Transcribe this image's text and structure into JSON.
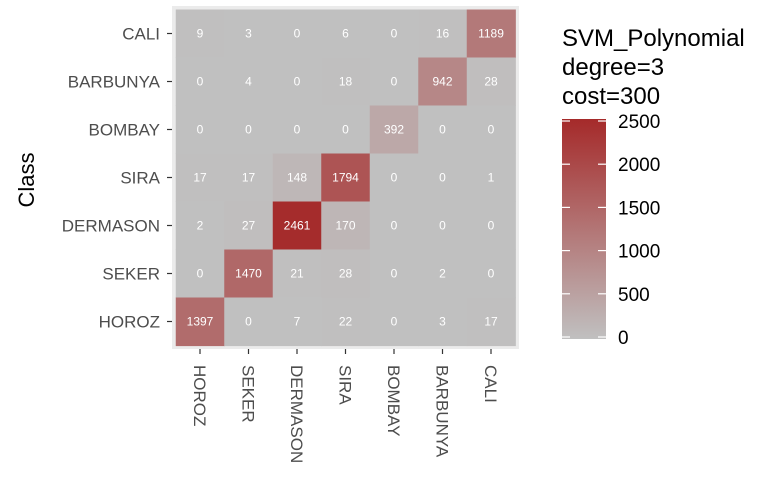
{
  "chart_data": {
    "type": "heatmap",
    "xlabel": "",
    "ylabel": "Class",
    "x_categories": [
      "HOROZ",
      "SEKER",
      "DERMASON",
      "SIRA",
      "BOMBAY",
      "BARBUNYA",
      "CALI"
    ],
    "y_categories": [
      "CALI",
      "BARBUNYA",
      "BOMBAY",
      "SIRA",
      "DERMASON",
      "SEKER",
      "HOROZ"
    ],
    "values": [
      [
        9,
        3,
        0,
        6,
        0,
        16,
        1189
      ],
      [
        0,
        4,
        0,
        18,
        0,
        942,
        28
      ],
      [
        0,
        0,
        0,
        0,
        392,
        0,
        0
      ],
      [
        17,
        17,
        148,
        1794,
        0,
        0,
        1
      ],
      [
        2,
        27,
        2461,
        170,
        0,
        0,
        0
      ],
      [
        0,
        1470,
        21,
        28,
        0,
        2,
        0
      ],
      [
        1397,
        0,
        7,
        22,
        0,
        3,
        17
      ]
    ],
    "legend": {
      "title_lines": [
        "SVM_Polynomial",
        "degree=3",
        "cost=300"
      ],
      "ticks": [
        0,
        500,
        1000,
        1500,
        2000,
        2500
      ],
      "range": [
        0,
        2500
      ],
      "position": "right"
    },
    "colors": {
      "low": "#c0c0c0",
      "high": "#a52a2a",
      "panel_background": "#ebebeb"
    }
  }
}
